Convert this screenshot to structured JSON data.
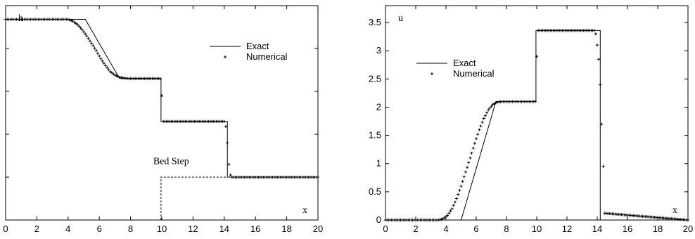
{
  "chart_data": [
    {
      "type": "line",
      "ylabel": "h",
      "xlabel": "x",
      "xlim": [
        0,
        20
      ],
      "ylim": [
        0,
        5
      ],
      "xticks": [
        "0",
        "2",
        "4",
        "6",
        "8",
        "10",
        "12",
        "14",
        "16",
        "18",
        "20"
      ],
      "yticks": [
        "",
        "",
        "",
        "",
        "",
        ""
      ],
      "legend": {
        "position": "top-right",
        "entries": [
          "Exact",
          "Numerical"
        ]
      },
      "annotations": [
        {
          "text": "Bed Step",
          "x": 10.6,
          "y": 1.3
        }
      ],
      "series": [
        {
          "name": "Exact",
          "style": "solid",
          "x": [
            0,
            5.1,
            7.3,
            9.95,
            9.95,
            14.2,
            14.2,
            20
          ],
          "y": [
            4.68,
            4.68,
            3.3,
            3.3,
            2.3,
            2.3,
            1.0,
            1.0
          ]
        },
        {
          "name": "Numerical",
          "style": "plus",
          "x": [
            0,
            4.0,
            4.3,
            4.6,
            4.9,
            5.2,
            5.5,
            5.8,
            6.1,
            6.4,
            6.7,
            7.0,
            7.3,
            7.6,
            7.9,
            8.2,
            8.5,
            9.9,
            10.0,
            10.1,
            14.0,
            14.1,
            14.2,
            14.3,
            14.4,
            14.5,
            20
          ],
          "y": [
            4.68,
            4.68,
            4.64,
            4.56,
            4.44,
            4.29,
            4.12,
            3.95,
            3.76,
            3.6,
            3.46,
            3.38,
            3.33,
            3.31,
            3.3,
            3.3,
            3.3,
            3.3,
            2.9,
            2.3,
            2.3,
            2.18,
            1.8,
            1.3,
            1.05,
            1.0,
            1.0
          ]
        }
      ],
      "bed_step": {
        "x": [
          9.95,
          9.95,
          20
        ],
        "y": [
          0,
          1.0,
          1.0
        ]
      }
    },
    {
      "type": "line",
      "ylabel": "u",
      "xlabel": "x",
      "xlim": [
        0,
        20
      ],
      "ylim": [
        0,
        3.8
      ],
      "xticks": [
        "0",
        "2",
        "4",
        "6",
        "8",
        "10",
        "12",
        "14",
        "16",
        "18",
        "20"
      ],
      "yticks": [
        "0",
        "0.5",
        "1",
        "1.5",
        "2",
        "2.5",
        "3",
        "3.5"
      ],
      "ytick_values": [
        0,
        0.5,
        1,
        1.5,
        2,
        2.5,
        3,
        3.5
      ],
      "legend": {
        "position": "top-left",
        "entries": [
          "Exact",
          "Numerical"
        ]
      },
      "series": [
        {
          "name": "Exact",
          "style": "solid",
          "x": [
            0,
            5.0,
            7.3,
            9.95,
            9.95,
            14.2,
            14.2,
            20
          ],
          "y": [
            0,
            0,
            2.1,
            2.1,
            3.36,
            3.36,
            0,
            0
          ]
        },
        {
          "name": "Numerical",
          "style": "plus",
          "x": [
            0,
            3.5,
            3.8,
            4.1,
            4.4,
            4.7,
            5.0,
            5.3,
            5.6,
            5.9,
            6.2,
            6.5,
            6.8,
            7.1,
            7.4,
            7.7,
            8.0,
            9.9,
            10.0,
            10.1,
            13.8,
            13.9,
            14.0,
            14.1,
            14.2,
            14.3,
            14.4,
            14.5,
            20
          ],
          "y": [
            0,
            0,
            0.02,
            0.08,
            0.2,
            0.38,
            0.6,
            0.85,
            1.1,
            1.36,
            1.6,
            1.8,
            1.95,
            2.05,
            2.09,
            2.1,
            2.1,
            2.1,
            2.9,
            3.36,
            3.36,
            3.3,
            3.1,
            2.85,
            2.4,
            1.7,
            0.95,
            0.12,
            0
          ]
        }
      ]
    }
  ]
}
